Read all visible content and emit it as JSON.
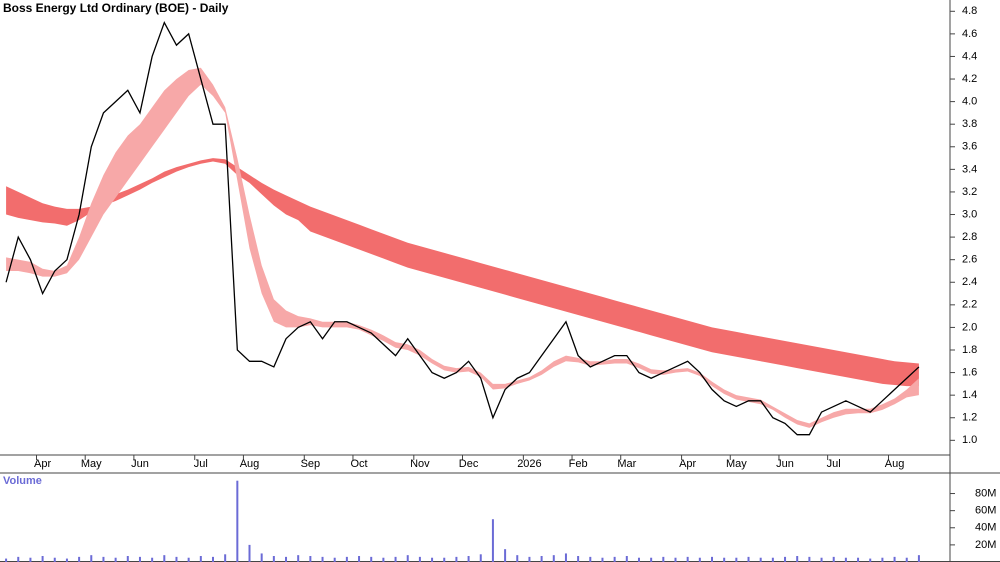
{
  "chart_data": [
    {
      "type": "line",
      "title": "Boss Energy Ltd Ordinary (BOE) - Daily",
      "categories": [
        null,
        null,
        null,
        "Apr",
        null,
        null,
        null,
        "May",
        null,
        null,
        null,
        "Jun",
        null,
        null,
        null,
        null,
        "Jul",
        null,
        null,
        null,
        "Aug",
        null,
        null,
        null,
        null,
        "Sep",
        null,
        null,
        null,
        "Oct",
        null,
        null,
        null,
        null,
        "Nov",
        null,
        null,
        null,
        "Dec",
        null,
        null,
        null,
        null,
        "2026",
        null,
        null,
        null,
        "Feb",
        null,
        null,
        null,
        "Mar",
        null,
        null,
        null,
        null,
        "Apr",
        null,
        null,
        null,
        "May",
        null,
        null,
        null,
        "Jun",
        null,
        null,
        null,
        "Jul",
        null,
        null,
        null,
        null,
        "Aug",
        null,
        null
      ],
      "series": [
        {
          "color": "#000000",
          "values": [
            2.4,
            2.8,
            2.6,
            2.3,
            2.5,
            2.6,
            3.0,
            3.6,
            3.9,
            4.0,
            4.1,
            3.9,
            4.4,
            4.7,
            4.5,
            4.6,
            4.2,
            3.8,
            3.8,
            1.8,
            1.7,
            1.7,
            1.65,
            1.9,
            2.0,
            2.05,
            1.9,
            2.05,
            2.05,
            2.0,
            1.95,
            1.85,
            1.75,
            1.9,
            1.75,
            1.6,
            1.55,
            1.6,
            1.7,
            1.55,
            1.2,
            1.45,
            1.55,
            1.6,
            1.75,
            1.9,
            2.05,
            1.75,
            1.65,
            1.7,
            1.75,
            1.75,
            1.6,
            1.55,
            1.6,
            1.65,
            1.7,
            1.6,
            1.45,
            1.35,
            1.3,
            1.35,
            1.35,
            1.2,
            1.15,
            1.05,
            1.05,
            1.25,
            1.3,
            1.35,
            1.3,
            1.25,
            1.35,
            1.45,
            1.55,
            1.65
          ]
        }
      ],
      "bands": [
        {
          "color": "#f26d6d",
          "upper": [
            3.25,
            3.2,
            3.15,
            3.1,
            3.07,
            3.05,
            3.05,
            3.07,
            3.12,
            3.18,
            3.22,
            3.27,
            3.32,
            3.38,
            3.42,
            3.45,
            3.48,
            3.5,
            3.49,
            3.42,
            3.35,
            3.28,
            3.22,
            3.17,
            3.12,
            3.07,
            3.03,
            2.99,
            2.95,
            2.91,
            2.87,
            2.83,
            2.79,
            2.75,
            2.72,
            2.69,
            2.66,
            2.63,
            2.6,
            2.57,
            2.54,
            2.51,
            2.48,
            2.45,
            2.42,
            2.39,
            2.36,
            2.33,
            2.3,
            2.27,
            2.24,
            2.21,
            2.18,
            2.15,
            2.12,
            2.09,
            2.06,
            2.03,
            2.0,
            1.98,
            1.96,
            1.94,
            1.92,
            1.9,
            1.88,
            1.86,
            1.84,
            1.82,
            1.8,
            1.78,
            1.76,
            1.74,
            1.72,
            1.7,
            1.69,
            1.68
          ],
          "lower": [
            3.0,
            2.97,
            2.95,
            2.93,
            2.92,
            2.9,
            2.95,
            3.02,
            3.08,
            3.12,
            3.17,
            3.22,
            3.28,
            3.33,
            3.38,
            3.42,
            3.45,
            3.47,
            3.45,
            3.35,
            3.28,
            3.18,
            3.08,
            3.0,
            2.95,
            2.85,
            2.81,
            2.77,
            2.73,
            2.69,
            2.65,
            2.61,
            2.57,
            2.53,
            2.5,
            2.47,
            2.44,
            2.41,
            2.38,
            2.35,
            2.32,
            2.29,
            2.26,
            2.23,
            2.2,
            2.17,
            2.14,
            2.11,
            2.08,
            2.05,
            2.02,
            1.99,
            1.96,
            1.93,
            1.9,
            1.87,
            1.84,
            1.81,
            1.78,
            1.76,
            1.74,
            1.72,
            1.7,
            1.68,
            1.66,
            1.64,
            1.62,
            1.6,
            1.58,
            1.56,
            1.54,
            1.52,
            1.5,
            1.49,
            1.48,
            1.48
          ]
        },
        {
          "color": "#f7a8a8",
          "upper": [
            2.62,
            2.6,
            2.58,
            2.52,
            2.5,
            2.55,
            2.8,
            3.1,
            3.35,
            3.55,
            3.7,
            3.8,
            3.95,
            4.1,
            4.2,
            4.28,
            4.3,
            4.15,
            3.95,
            3.5,
            3.0,
            2.55,
            2.25,
            2.15,
            2.1,
            2.08,
            2.05,
            2.05,
            2.05,
            2.02,
            1.98,
            1.93,
            1.87,
            1.85,
            1.8,
            1.72,
            1.66,
            1.64,
            1.65,
            1.6,
            1.5,
            1.5,
            1.53,
            1.56,
            1.62,
            1.7,
            1.75,
            1.73,
            1.7,
            1.7,
            1.72,
            1.72,
            1.68,
            1.63,
            1.62,
            1.63,
            1.64,
            1.6,
            1.52,
            1.45,
            1.4,
            1.38,
            1.36,
            1.3,
            1.24,
            1.18,
            1.15,
            1.2,
            1.25,
            1.28,
            1.28,
            1.28,
            1.32,
            1.37,
            1.45,
            1.55
          ],
          "lower": [
            2.5,
            2.5,
            2.48,
            2.45,
            2.45,
            2.48,
            2.6,
            2.8,
            3.0,
            3.15,
            3.3,
            3.45,
            3.6,
            3.75,
            3.9,
            4.05,
            4.15,
            4.05,
            3.9,
            3.3,
            2.7,
            2.3,
            2.05,
            2.0,
            2.0,
            2.02,
            2.0,
            2.0,
            2.0,
            1.98,
            1.93,
            1.88,
            1.82,
            1.8,
            1.75,
            1.68,
            1.62,
            1.6,
            1.61,
            1.56,
            1.45,
            1.46,
            1.5,
            1.53,
            1.58,
            1.65,
            1.7,
            1.69,
            1.66,
            1.67,
            1.68,
            1.68,
            1.64,
            1.59,
            1.58,
            1.6,
            1.61,
            1.57,
            1.48,
            1.41,
            1.36,
            1.34,
            1.32,
            1.27,
            1.2,
            1.14,
            1.11,
            1.16,
            1.2,
            1.23,
            1.24,
            1.24,
            1.27,
            1.32,
            1.38,
            1.4
          ]
        }
      ],
      "ylim": [
        0.87,
        4.9
      ],
      "yticks": [
        {
          "value": 1,
          "label": "1.0"
        },
        1.2,
        1.4,
        1.6,
        1.8,
        {
          "value": 2,
          "label": "2.0"
        },
        2.2,
        2.4,
        2.6,
        2.8,
        {
          "value": 3,
          "label": "3.0"
        },
        3.2,
        3.4,
        3.6,
        3.8,
        {
          "value": 4,
          "label": "4.0"
        },
        4.2,
        4.4,
        4.6,
        4.8
      ]
    },
    {
      "type": "bar",
      "title": "Volume",
      "color": "#6b6bd6",
      "values": [
        4000000,
        6000000,
        5000000,
        7000000,
        5000000,
        4000000,
        6000000,
        8000000,
        6000000,
        5000000,
        7000000,
        6000000,
        5000000,
        8000000,
        6000000,
        5000000,
        7000000,
        6000000,
        9000000,
        95000000,
        20000000,
        10000000,
        7000000,
        6000000,
        8000000,
        7000000,
        6000000,
        5000000,
        6000000,
        7000000,
        6000000,
        5000000,
        6000000,
        8000000,
        6000000,
        5000000,
        5000000,
        6000000,
        7000000,
        9000000,
        50000000,
        15000000,
        8000000,
        6000000,
        7000000,
        8000000,
        10000000,
        7000000,
        6000000,
        5000000,
        6000000,
        7000000,
        5000000,
        5000000,
        6000000,
        5000000,
        6000000,
        5000000,
        6000000,
        5000000,
        5000000,
        6000000,
        5000000,
        5000000,
        6000000,
        7000000,
        6000000,
        5000000,
        6000000,
        5000000,
        5000000,
        4000000,
        5000000,
        6000000,
        5000000,
        8000000
      ],
      "ylim": [
        0,
        104000000
      ],
      "yticks": [
        {
          "value": 20000000,
          "label": "20M"
        },
        {
          "value": 40000000,
          "label": "40M"
        },
        {
          "value": 60000000,
          "label": "60M"
        },
        {
          "value": 80000000,
          "label": "80M"
        }
      ]
    }
  ]
}
